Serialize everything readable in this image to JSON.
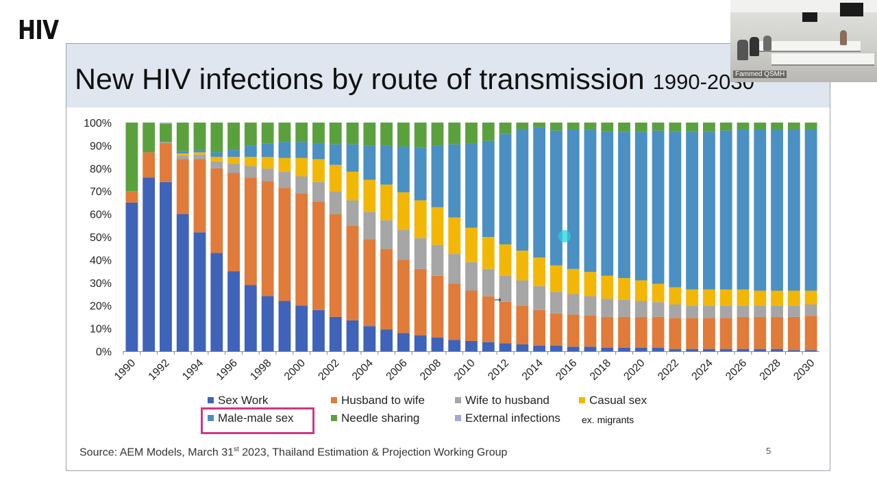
{
  "corner_logo": "HIV",
  "slide": {
    "title_main": "New HIV infections by route of transmission ",
    "title_years": "1990-2030",
    "source_prefix": "Source: AEM Models, March 31",
    "source_sup": "st",
    "source_suffix": " 2023, Thailand Estimation & Projection Working Group",
    "page_number": "5",
    "legend_note": "ex. migrants"
  },
  "video": {
    "participant_name": "Fammed QSMH"
  },
  "chart_data": {
    "type": "bar",
    "stacked": true,
    "title": "",
    "xlabel": "",
    "ylabel": "",
    "ylim": [
      0,
      100
    ],
    "y_ticks": [
      "0%",
      "10%",
      "20%",
      "30%",
      "40%",
      "50%",
      "60%",
      "70%",
      "80%",
      "90%",
      "100%"
    ],
    "x_tick_labels": [
      "1990",
      "1992",
      "1994",
      "1996",
      "1998",
      "2000",
      "2002",
      "2004",
      "2006",
      "2008",
      "2010",
      "2012",
      "2014",
      "2016",
      "2018",
      "2020",
      "2022",
      "2024",
      "2026",
      "2028",
      "2030"
    ],
    "grid": false,
    "legend_position": "bottom",
    "categories": [
      "1990",
      "1991",
      "1992",
      "1993",
      "1994",
      "1995",
      "1996",
      "1997",
      "1998",
      "1999",
      "2000",
      "2001",
      "2002",
      "2003",
      "2004",
      "2005",
      "2006",
      "2007",
      "2008",
      "2009",
      "2010",
      "2011",
      "2012",
      "2013",
      "2014",
      "2015",
      "2016",
      "2017",
      "2018",
      "2019",
      "2020",
      "2021",
      "2022",
      "2023",
      "2024",
      "2025",
      "2026",
      "2027",
      "2028",
      "2029",
      "2030"
    ],
    "series": [
      {
        "name": "Sex Work",
        "color": "#3f63b8",
        "values": [
          65,
          76,
          74,
          60,
          52,
          43,
          35,
          29,
          24,
          22,
          20,
          18,
          15,
          13.5,
          11,
          9.5,
          8,
          7,
          6,
          5,
          4.5,
          4,
          3.5,
          3,
          2.5,
          2.5,
          2,
          2,
          1.5,
          1.5,
          1.5,
          1.5,
          1,
          1,
          1,
          1,
          1,
          1,
          1,
          0.5,
          0.5
        ]
      },
      {
        "name": "Husband to wife",
        "color": "#e07b3a",
        "values": [
          5,
          11,
          17,
          24,
          32,
          37,
          43,
          47,
          50,
          49.5,
          49,
          47.5,
          45,
          41.5,
          38,
          35,
          32,
          29,
          27,
          24.5,
          22,
          20,
          18,
          17,
          15.5,
          14,
          14,
          13.5,
          13.5,
          13.5,
          13.5,
          13.5,
          13.5,
          13.5,
          13.5,
          13.5,
          14,
          14,
          14,
          14.5,
          15
        ]
      },
      {
        "name": "Wife to husband",
        "color": "#a6a6a6",
        "values": [
          0,
          0,
          0.5,
          1.5,
          2,
          3,
          4,
          5,
          5.5,
          7,
          7.5,
          8.5,
          10,
          11,
          12,
          12.5,
          13,
          13.5,
          13.5,
          13,
          12.5,
          12,
          11.5,
          11,
          10.5,
          9.5,
          9,
          8.5,
          8,
          7.5,
          7,
          6.5,
          6,
          5.5,
          5.5,
          5.5,
          5,
          5,
          5,
          5,
          5
        ]
      },
      {
        "name": "Casual sex",
        "color": "#f2b705",
        "values": [
          0,
          0,
          0,
          1,
          1,
          2,
          3,
          4,
          5,
          6,
          8,
          10,
          11.5,
          12.5,
          14,
          15.5,
          16.5,
          16.5,
          16.5,
          16,
          15,
          14,
          13.5,
          13,
          12.5,
          11.5,
          11,
          10.5,
          10,
          9.5,
          9,
          8,
          7.5,
          7,
          7,
          7,
          7,
          6.5,
          6.5,
          6.5,
          6
        ]
      },
      {
        "name": "Male-male sex",
        "color": "#4a90c2",
        "values": [
          0,
          0,
          0,
          1,
          1,
          2,
          3,
          5,
          6,
          7,
          7,
          7,
          9,
          12,
          15,
          17,
          20,
          23,
          27,
          32,
          37,
          42,
          48,
          53,
          57,
          59,
          61,
          62,
          63,
          64,
          65,
          67,
          68,
          69,
          69,
          69.5,
          70,
          70.5,
          70.5,
          70.5,
          70.5
        ]
      },
      {
        "name": "Needle sharing",
        "color": "#5aa13e",
        "values": [
          30,
          13,
          8,
          12.5,
          12,
          13,
          12,
          10,
          9,
          8.5,
          8.5,
          9,
          9.5,
          9.5,
          10,
          10,
          10.5,
          11,
          10,
          9.5,
          9,
          8,
          5,
          3,
          2,
          3.5,
          3,
          3,
          4,
          4,
          4,
          3.5,
          4,
          4,
          4,
          3.5,
          3,
          3,
          3,
          3,
          3
        ]
      },
      {
        "name": "External infections",
        "color": "#9fa8d8",
        "values": [
          0,
          0,
          0.5,
          0,
          0,
          0,
          0,
          0,
          0,
          0,
          0,
          0,
          0,
          0,
          0,
          0,
          0,
          0,
          0,
          0,
          0,
          0,
          0,
          0,
          0,
          0,
          0,
          0,
          0,
          0,
          0,
          0,
          0,
          0,
          0,
          0,
          0,
          0,
          0,
          0,
          0
        ]
      }
    ],
    "legend_order": [
      "Sex Work",
      "Husband to wife",
      "Wife to husband",
      "Casual sex",
      "Male-male sex",
      "Needle sharing",
      "External infections"
    ],
    "highlighted_series": "Male-male sex"
  }
}
